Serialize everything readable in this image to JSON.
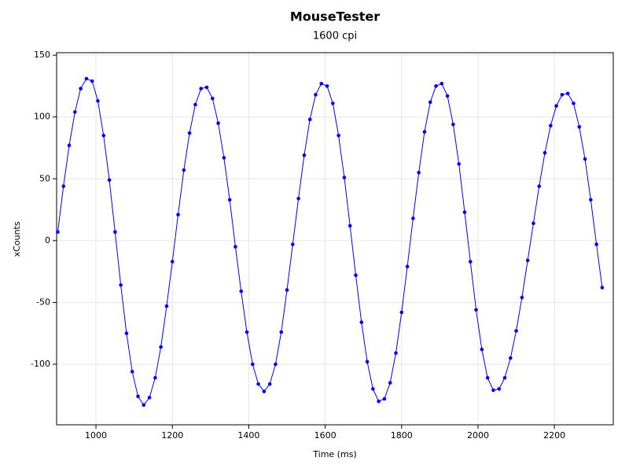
{
  "chart_data": {
    "type": "line",
    "title": "MouseTester",
    "subtitle": "1600 cpi",
    "x_label": "Time (ms)",
    "y_label": "xCounts",
    "x": [
      900,
      915,
      930,
      945,
      960,
      975,
      990,
      1005,
      1020,
      1035,
      1050,
      1065,
      1080,
      1095,
      1110,
      1125,
      1140,
      1155,
      1170,
      1185,
      1200,
      1215,
      1230,
      1245,
      1260,
      1275,
      1290,
      1305,
      1320,
      1335,
      1350,
      1365,
      1380,
      1395,
      1410,
      1425,
      1440,
      1455,
      1470,
      1485,
      1500,
      1515,
      1530,
      1545,
      1560,
      1575,
      1590,
      1605,
      1620,
      1635,
      1650,
      1665,
      1680,
      1695,
      1710,
      1725,
      1740,
      1755,
      1770,
      1785,
      1800,
      1815,
      1830,
      1845,
      1860,
      1875,
      1890,
      1905,
      1920,
      1935,
      1950,
      1965,
      1980,
      1995,
      2010,
      2025,
      2040,
      2055,
      2070,
      2085,
      2100,
      2115,
      2130,
      2145,
      2160,
      2175,
      2190,
      2205,
      2220,
      2235,
      2250,
      2265,
      2280,
      2295,
      2310,
      2325
    ],
    "series": [
      {
        "color": "#0000ff",
        "values": [
          7,
          44,
          77,
          104,
          123,
          131,
          129,
          113,
          85,
          49,
          7,
          -36,
          -75,
          -106,
          -126,
          -133,
          -127,
          -111,
          -86,
          -53,
          -17,
          21,
          57,
          87,
          110,
          123,
          124,
          115,
          95,
          67,
          33,
          -5,
          -41,
          -74,
          -100,
          -116,
          -122,
          -116,
          -100,
          -74,
          -40,
          -3,
          34,
          69,
          98,
          118,
          127,
          125,
          111,
          85,
          51,
          12,
          -28,
          -66,
          -98,
          -120,
          -130,
          -128,
          -115,
          -91,
          -58,
          -21,
          18,
          55,
          88,
          112,
          125,
          127,
          117,
          94,
          62,
          23,
          -17,
          -56,
          -88,
          -111,
          -121,
          -120,
          -111,
          -95,
          -73,
          -46,
          -16,
          14,
          44,
          71,
          93,
          109,
          118,
          119,
          111,
          92,
          66,
          33,
          -3,
          -38
        ]
      }
    ],
    "xlim": [
      897,
      2354
    ],
    "xticks": [
      1000,
      1200,
      1400,
      1600,
      1800,
      2000,
      2200
    ],
    "ylim": [
      -149,
      152
    ],
    "yticks": [
      -100,
      -50,
      0,
      50,
      100,
      150
    ],
    "grid": true
  }
}
